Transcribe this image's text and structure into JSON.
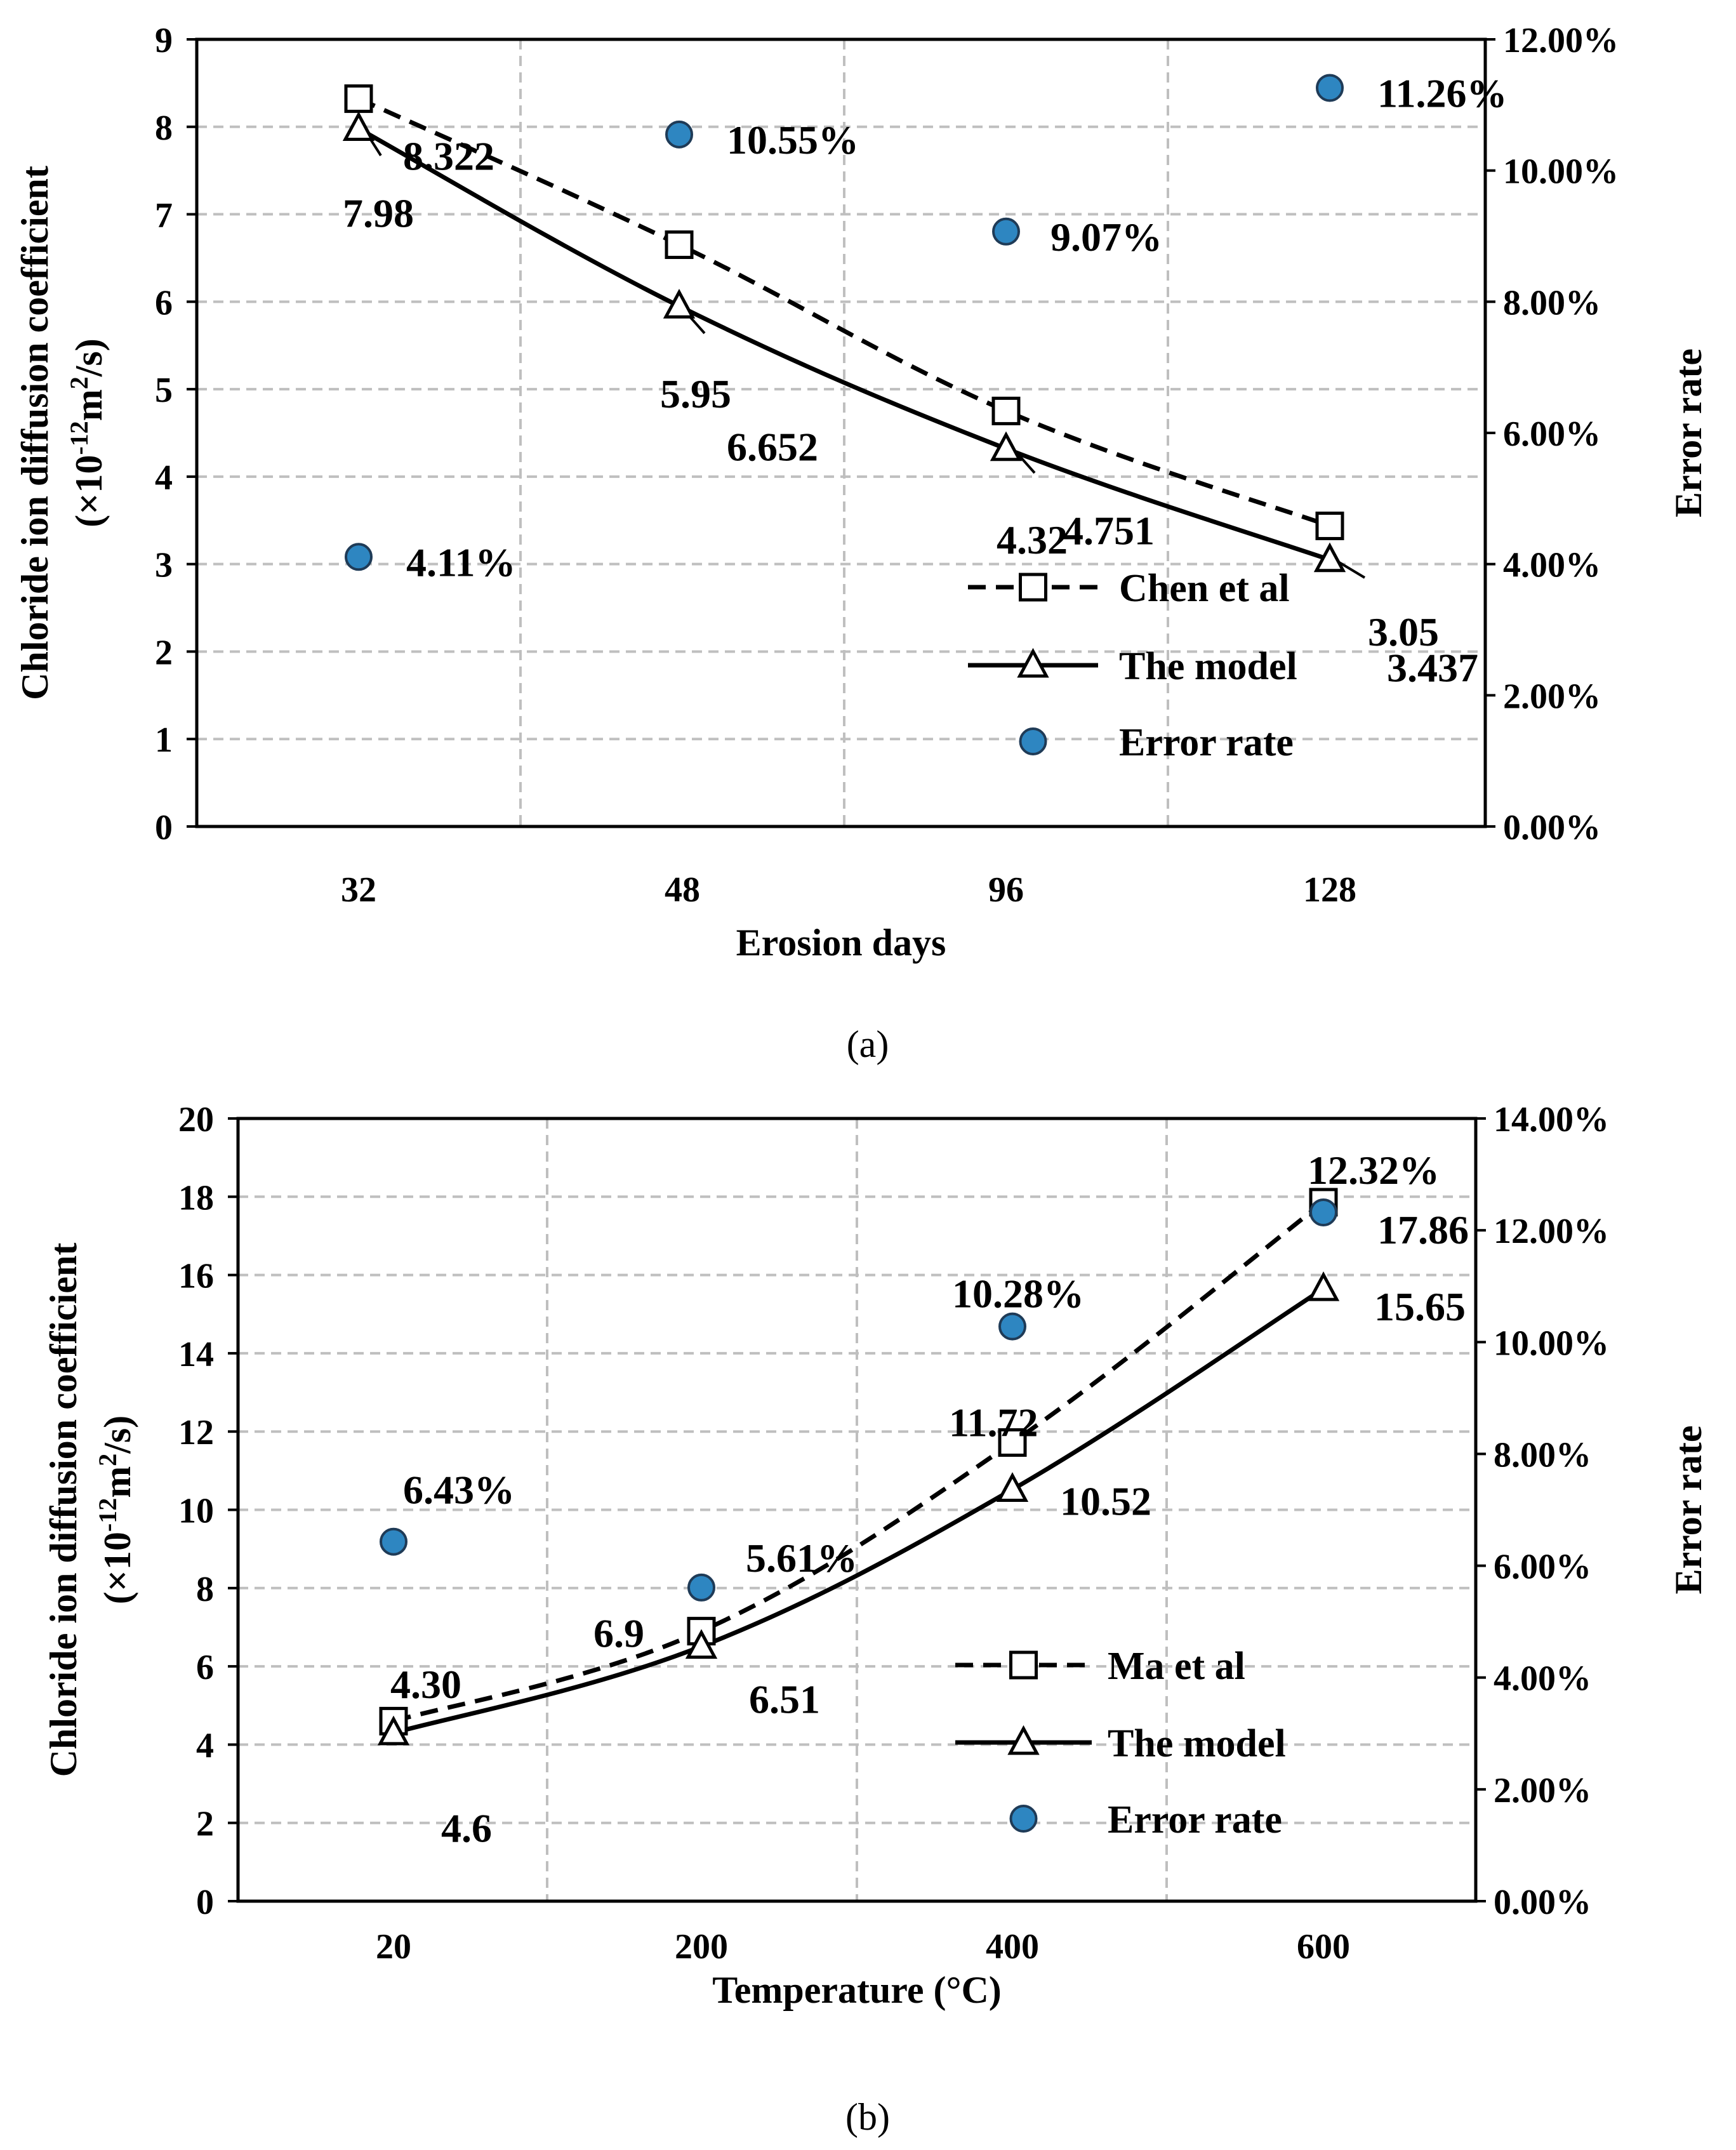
{
  "colors": {
    "axis": "#000000",
    "grid": "#bfbfbf",
    "error_fill": "#2e86c1",
    "error_stroke": "#1f3b57"
  },
  "chart_data": [
    {
      "type": "line",
      "caption": "(a)",
      "xlabel": "Erosion days",
      "ylabel": "Chloride ion diffusion coefficient",
      "ylabel_unit": "(×10",
      "ylabel_unit_exp": "-12",
      "ylabel_unit_rest": "m",
      "ylabel_unit_sq": "2",
      "ylabel_unit_end": "/s)",
      "y2label": "Error rate",
      "categories": [
        "32",
        "48",
        "96",
        "128"
      ],
      "ylim": [
        0,
        9
      ],
      "yticks": [
        "0",
        "1",
        "2",
        "3",
        "4",
        "5",
        "6",
        "7",
        "8",
        "9"
      ],
      "y2lim": [
        0,
        0.12
      ],
      "y2ticks": [
        "0.00%",
        "2.00%",
        "4.00%",
        "6.00%",
        "8.00%",
        "10.00%",
        "12.00%"
      ],
      "grid": true,
      "legend_position": "lower-right",
      "series": [
        {
          "name": "Chen et al",
          "marker": "square",
          "dash": true,
          "values": [
            8.322,
            6.652,
            4.751,
            3.437
          ],
          "labels": [
            "8.322",
            "6.652",
            "4.751",
            "3.437"
          ]
        },
        {
          "name": "The model",
          "marker": "triangle",
          "dash": false,
          "values": [
            7.98,
            5.95,
            4.32,
            3.05
          ],
          "labels": [
            "7.98",
            "5.95",
            "4.32",
            "3.05"
          ]
        },
        {
          "name": "Error rate",
          "marker": "circle",
          "axis": "right",
          "values": [
            0.0411,
            0.1055,
            0.0907,
            0.1126
          ],
          "labels": [
            "4.11%",
            "10.55%",
            "9.07%",
            "11.26%"
          ]
        }
      ]
    },
    {
      "type": "line",
      "caption": "(b)",
      "xlabel": "Temperature (°C)",
      "ylabel": "Chloride ion diffusion coefficient",
      "ylabel_unit": "(×10",
      "ylabel_unit_exp": "-12",
      "ylabel_unit_rest": "m",
      "ylabel_unit_sq": "2",
      "ylabel_unit_end": "/s)",
      "y2label": "Error rate",
      "categories": [
        "20",
        "200",
        "400",
        "600"
      ],
      "ylim": [
        0,
        20
      ],
      "yticks": [
        "0",
        "2",
        "4",
        "6",
        "8",
        "10",
        "12",
        "14",
        "16",
        "18",
        "20"
      ],
      "y2lim": [
        0,
        0.14
      ],
      "y2ticks": [
        "0.00%",
        "2.00%",
        "4.00%",
        "6.00%",
        "8.00%",
        "10.00%",
        "12.00%",
        "14.00%"
      ],
      "grid": true,
      "legend_position": "lower-right",
      "series": [
        {
          "name": "Ma et al",
          "marker": "square",
          "dash": true,
          "values": [
            4.6,
            6.9,
            11.72,
            17.86
          ],
          "labels": [
            "4.6",
            "6.9",
            "11.72",
            "17.86"
          ]
        },
        {
          "name": "The model",
          "marker": "triangle",
          "dash": false,
          "values": [
            4.3,
            6.51,
            10.52,
            15.65
          ],
          "labels": [
            "4.30",
            "6.51",
            "10.52",
            "15.65"
          ]
        },
        {
          "name": "Error rate",
          "marker": "circle",
          "axis": "right",
          "values": [
            0.0643,
            0.0561,
            0.1028,
            0.1232
          ],
          "labels": [
            "6.43%",
            "5.61%",
            "10.28%",
            "12.32%"
          ]
        }
      ]
    }
  ]
}
